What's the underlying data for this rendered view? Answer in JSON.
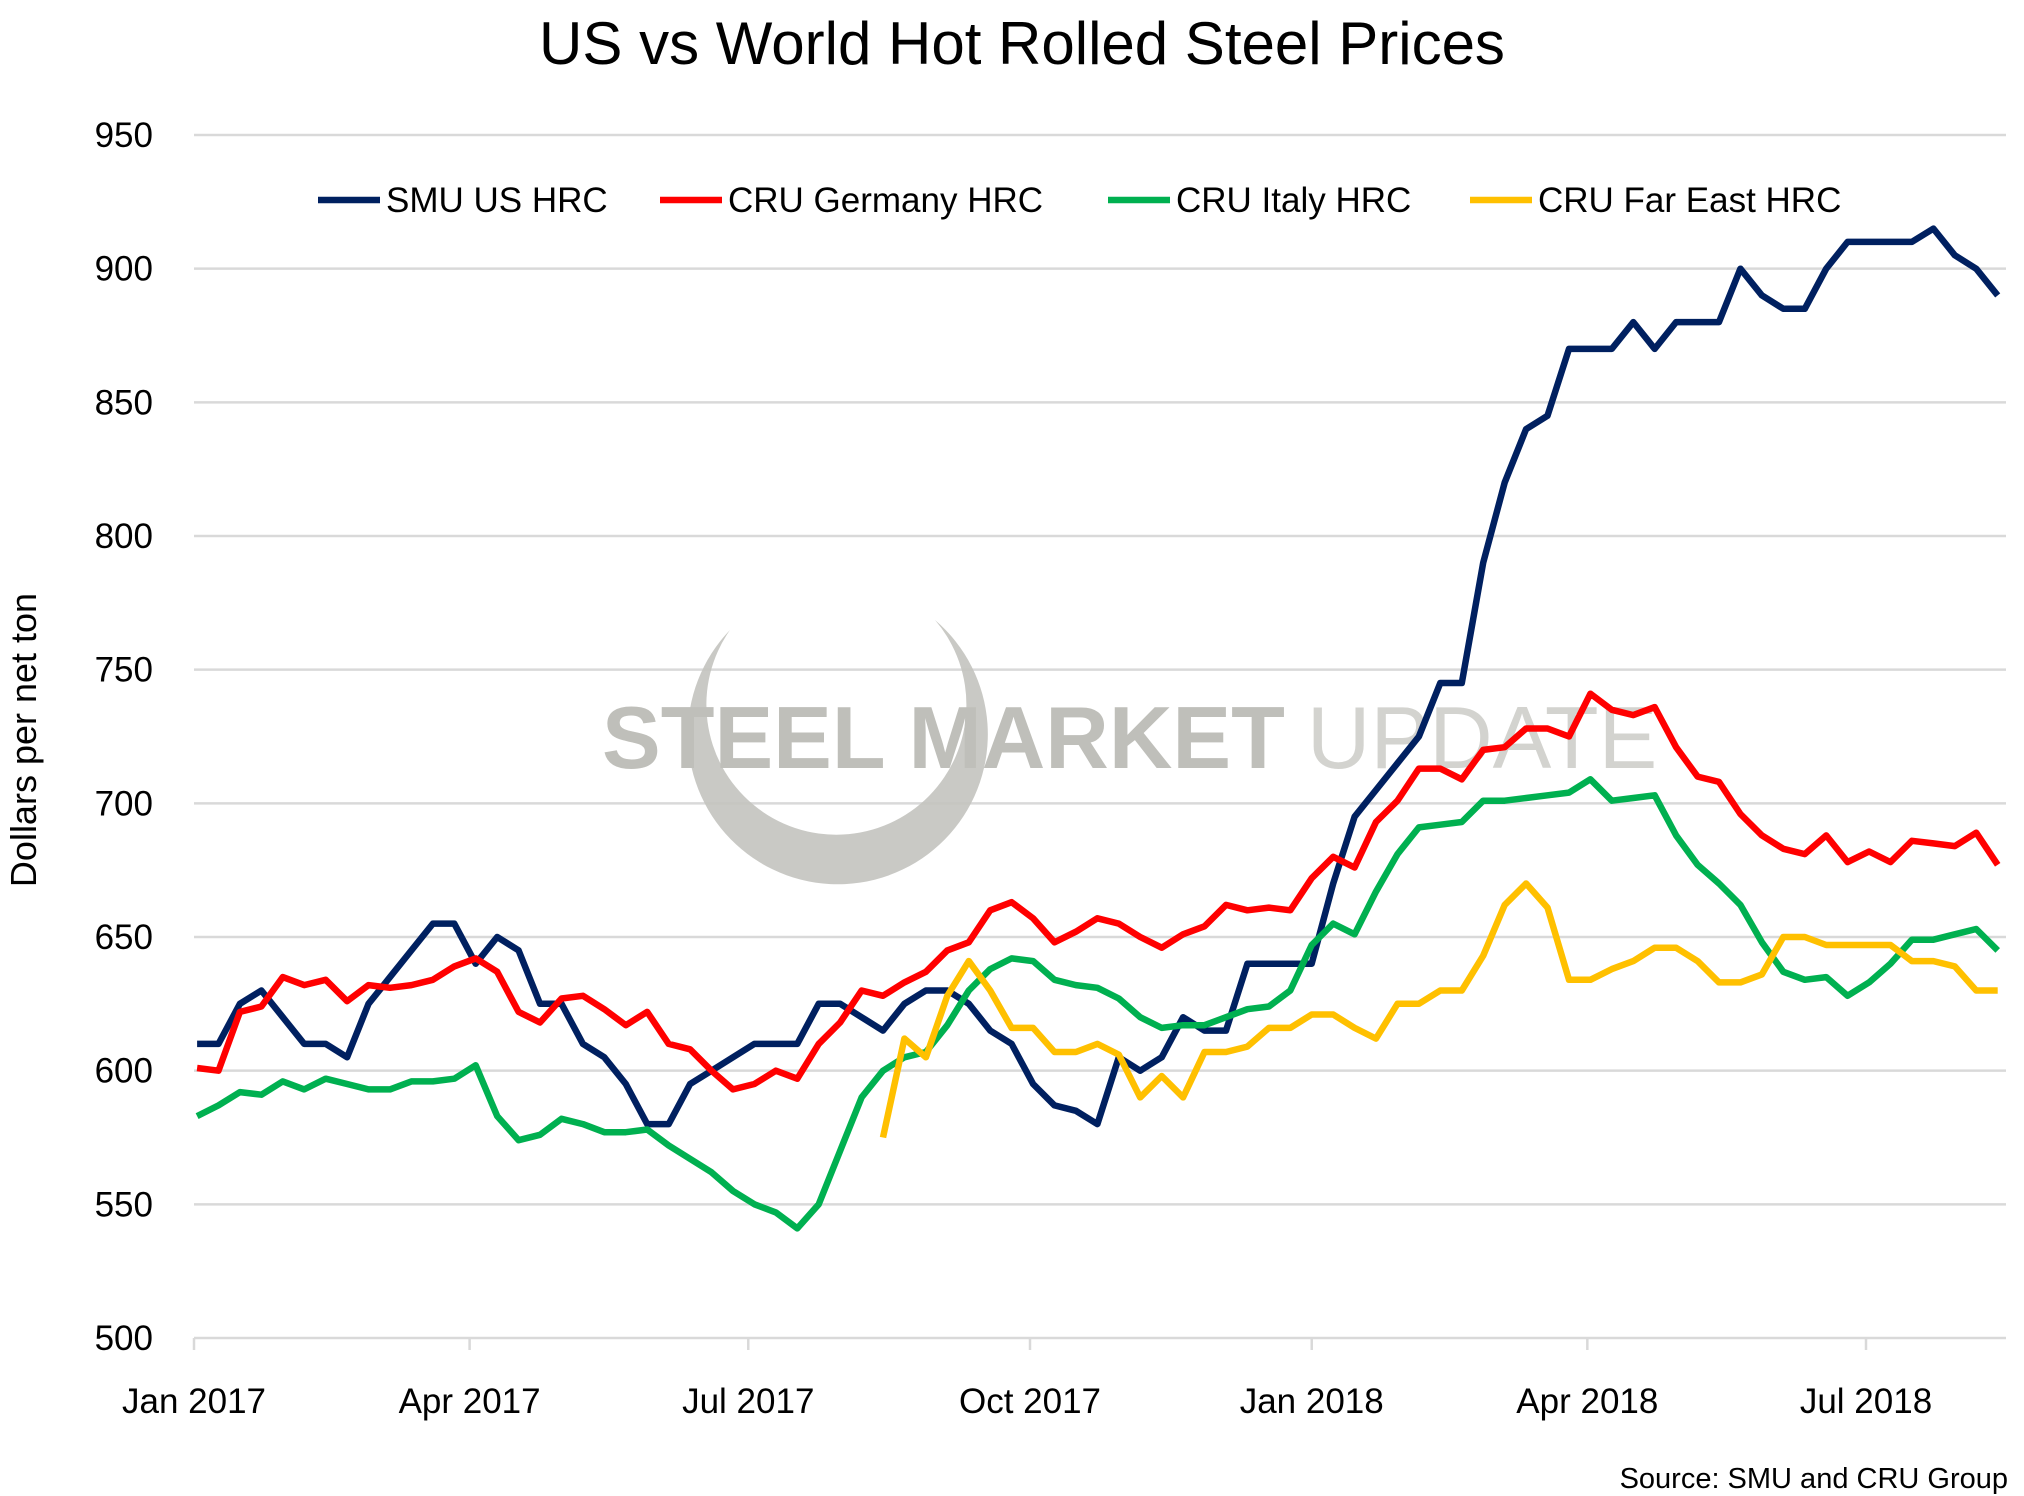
{
  "chart_data": {
    "type": "line",
    "title": "US vs World Hot Rolled Steel Prices",
    "ylabel": "Dollars per net ton",
    "xlabel": "",
    "source": "Source: SMU and CRU Group",
    "watermark": {
      "text_bold": "STEEL MARKET",
      "text_light": "UPDATE"
    },
    "ylim": [
      500,
      950
    ],
    "yticks": [
      "500",
      "550",
      "600",
      "650",
      "700",
      "750",
      "800",
      "850",
      "900",
      "950"
    ],
    "xticks": [
      {
        "date": "2017-01-01",
        "label": "Jan 2017"
      },
      {
        "date": "2017-04-01",
        "label": "Apr 2017"
      },
      {
        "date": "2017-07-01",
        "label": "Jul 2017"
      },
      {
        "date": "2017-10-01",
        "label": "Oct 2017"
      },
      {
        "date": "2018-01-01",
        "label": "Jan 2018"
      },
      {
        "date": "2018-04-01",
        "label": "Apr 2018"
      },
      {
        "date": "2018-07-01",
        "label": "Jul 2018"
      }
    ],
    "xlim": [
      "2017-01-01",
      "2018-08-20"
    ],
    "grid": "horizontal",
    "legend": "top",
    "x": [
      "2017-01-02",
      "2017-01-09",
      "2017-01-16",
      "2017-01-23",
      "2017-01-30",
      "2017-02-06",
      "2017-02-13",
      "2017-02-20",
      "2017-02-27",
      "2017-03-06",
      "2017-03-13",
      "2017-03-20",
      "2017-03-27",
      "2017-04-03",
      "2017-04-10",
      "2017-04-17",
      "2017-04-24",
      "2017-05-01",
      "2017-05-08",
      "2017-05-15",
      "2017-05-22",
      "2017-05-29",
      "2017-06-05",
      "2017-06-12",
      "2017-06-19",
      "2017-06-26",
      "2017-07-03",
      "2017-07-10",
      "2017-07-17",
      "2017-07-24",
      "2017-07-31",
      "2017-08-07",
      "2017-08-14",
      "2017-08-21",
      "2017-08-28",
      "2017-09-04",
      "2017-09-11",
      "2017-09-18",
      "2017-09-25",
      "2017-10-02",
      "2017-10-09",
      "2017-10-16",
      "2017-10-23",
      "2017-10-30",
      "2017-11-06",
      "2017-11-13",
      "2017-11-20",
      "2017-11-27",
      "2017-12-04",
      "2017-12-11",
      "2017-12-18",
      "2017-12-25",
      "2018-01-01",
      "2018-01-08",
      "2018-01-15",
      "2018-01-22",
      "2018-01-29",
      "2018-02-05",
      "2018-02-12",
      "2018-02-19",
      "2018-02-26",
      "2018-03-05",
      "2018-03-12",
      "2018-03-19",
      "2018-03-26",
      "2018-04-02",
      "2018-04-09",
      "2018-04-16",
      "2018-04-23",
      "2018-04-30",
      "2018-05-07",
      "2018-05-14",
      "2018-05-21",
      "2018-05-28",
      "2018-06-04",
      "2018-06-11",
      "2018-06-18",
      "2018-06-25",
      "2018-07-02",
      "2018-07-09",
      "2018-07-16",
      "2018-07-23",
      "2018-07-30",
      "2018-08-06",
      "2018-08-13"
    ],
    "series": [
      {
        "name": "SMU US HRC",
        "color": "#002060",
        "values": [
          610,
          610,
          625,
          630,
          620,
          610,
          610,
          605,
          625,
          635,
          645,
          655,
          655,
          640,
          650,
          645,
          625,
          625,
          610,
          605,
          595,
          580,
          580,
          595,
          600,
          605,
          610,
          610,
          610,
          625,
          625,
          620,
          615,
          625,
          630,
          630,
          625,
          615,
          610,
          595,
          587,
          585,
          580,
          605,
          600,
          605,
          620,
          615,
          615,
          640,
          640,
          640,
          640,
          670,
          695,
          705,
          715,
          725,
          745,
          745,
          790,
          820,
          840,
          845,
          870,
          870,
          870,
          880,
          870,
          880,
          880,
          880,
          900,
          890,
          885,
          885,
          900,
          910,
          910,
          910,
          910,
          915,
          905,
          900,
          890
        ]
      },
      {
        "name": "CRU Germany HRC",
        "color": "#FF0000",
        "values": [
          601,
          600,
          622,
          624,
          635,
          632,
          634,
          626,
          632,
          631,
          632,
          634,
          639,
          642,
          637,
          622,
          618,
          627,
          628,
          623,
          617,
          622,
          610,
          608,
          600,
          593,
          595,
          600,
          597,
          610,
          618,
          630,
          628,
          633,
          637,
          645,
          648,
          660,
          663,
          657,
          648,
          652,
          657,
          655,
          650,
          646,
          651,
          654,
          662,
          660,
          661,
          660,
          672,
          680,
          676,
          693,
          701,
          713,
          713,
          709,
          720,
          721,
          728,
          728,
          725,
          741,
          735,
          733,
          736,
          721,
          710,
          708,
          696,
          688,
          683,
          681,
          688,
          678,
          682,
          678,
          686,
          685,
          684,
          689,
          677
        ]
      },
      {
        "name": "CRU Italy HRC",
        "color": "#00B050",
        "values": [
          583,
          587,
          592,
          591,
          596,
          593,
          597,
          595,
          593,
          593,
          596,
          596,
          597,
          602,
          583,
          574,
          576,
          582,
          580,
          577,
          577,
          578,
          572,
          567,
          562,
          555,
          550,
          547,
          541,
          550,
          570,
          590,
          600,
          605,
          607,
          617,
          630,
          638,
          642,
          641,
          634,
          632,
          631,
          627,
          620,
          616,
          617,
          617,
          620,
          623,
          624,
          630,
          647,
          655,
          651,
          667,
          681,
          691,
          692,
          693,
          701,
          701,
          702,
          703,
          704,
          709,
          701,
          702,
          703,
          688,
          677,
          670,
          662,
          648,
          637,
          634,
          635,
          628,
          633,
          640,
          649,
          649,
          651,
          653,
          645
        ]
      },
      {
        "name": "CRU Far East HRC",
        "color": "#FFC000",
        "values": [
          null,
          null,
          null,
          null,
          null,
          null,
          null,
          null,
          null,
          null,
          null,
          null,
          null,
          null,
          null,
          null,
          null,
          null,
          null,
          null,
          null,
          null,
          null,
          null,
          null,
          null,
          null,
          null,
          null,
          null,
          null,
          null,
          575,
          612,
          605,
          628,
          641,
          630,
          616,
          616,
          607,
          607,
          610,
          606,
          590,
          598,
          590,
          607,
          607,
          609,
          616,
          616,
          621,
          621,
          616,
          612,
          625,
          625,
          630,
          630,
          643,
          662,
          670,
          661,
          634,
          634,
          638,
          641,
          646,
          646,
          641,
          633,
          633,
          636,
          650,
          650,
          647,
          647,
          647,
          647,
          641,
          641,
          639,
          630,
          630
        ]
      }
    ]
  }
}
